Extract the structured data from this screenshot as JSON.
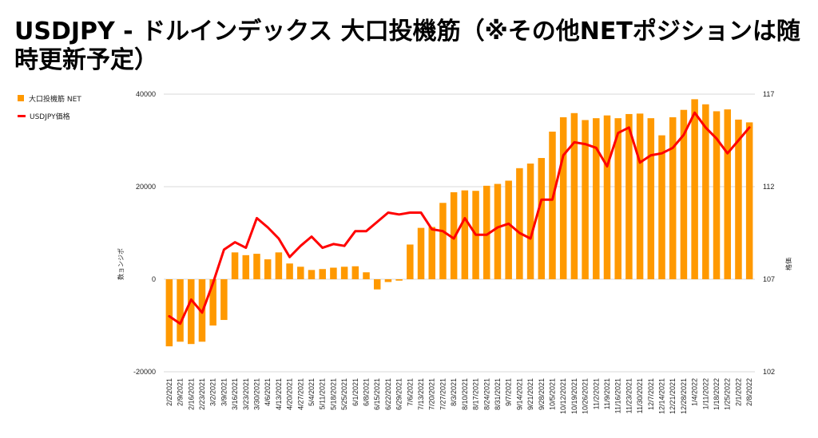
{
  "title": "USDJPY - ドルインデックス 大口投機筋（※その他NETポジションは随時更新予定）",
  "colors": {
    "bars": "#ff9900",
    "line": "#ff0000",
    "grid": "#d9d9d9"
  },
  "chart_data": {
    "type": "bar",
    "categories": [
      "2/2/2021",
      "2/9/2021",
      "2/16/2021",
      "2/23/2021",
      "3/2/2021",
      "3/9/2021",
      "3/16/2021",
      "3/23/2021",
      "3/30/2021",
      "4/6/2021",
      "4/13/2021",
      "4/20/2021",
      "4/27/2021",
      "5/4/2021",
      "5/11/2021",
      "5/18/2021",
      "5/25/2021",
      "6/1/2021",
      "6/8/2021",
      "6/15/2021",
      "6/22/2021",
      "6/29/2021",
      "7/6/2021",
      "7/13/2021",
      "7/20/2021",
      "7/27/2021",
      "8/3/2021",
      "8/10/2021",
      "8/17/2021",
      "8/24/2021",
      "8/31/2021",
      "9/7/2021",
      "9/14/2021",
      "9/21/2021",
      "9/28/2021",
      "10/5/2021",
      "10/12/2021",
      "10/19/2021",
      "10/26/2021",
      "11/2/2021",
      "11/9/2021",
      "11/16/2021",
      "11/23/2021",
      "11/30/2021",
      "12/7/2021",
      "12/14/2021",
      "12/21/2021",
      "12/28/2021",
      "1/4/2022",
      "1/11/2022",
      "1/18/2022",
      "1/25/2022",
      "2/1/2022",
      "2/8/2022"
    ],
    "series": [
      {
        "name": "大口投機筋 NET",
        "axis": "left",
        "type": "bar",
        "values": [
          -14500,
          -13500,
          -14000,
          -13500,
          -10000,
          -8800,
          5800,
          5200,
          5500,
          4300,
          5800,
          3400,
          2700,
          2000,
          2200,
          2500,
          2700,
          2800,
          1500,
          -2200,
          -600,
          -300,
          7500,
          11100,
          11300,
          16500,
          18800,
          19200,
          19100,
          20200,
          20600,
          21300,
          24000,
          25000,
          26200,
          31900,
          35000,
          35900,
          34400,
          34800,
          35400,
          34800,
          35700,
          35800,
          34800,
          31100,
          35000,
          36600,
          38900,
          37800,
          36300,
          36700,
          34500,
          33900
        ]
      },
      {
        "name": "USDJPY価格",
        "axis": "right",
        "type": "line",
        "values": [
          105.0,
          104.6,
          105.9,
          105.2,
          106.8,
          108.6,
          109.0,
          108.7,
          110.3,
          109.8,
          109.2,
          108.2,
          108.8,
          109.3,
          108.7,
          108.9,
          108.8,
          109.6,
          109.6,
          110.1,
          110.6,
          110.5,
          110.6,
          110.6,
          109.7,
          109.6,
          109.2,
          110.3,
          109.4,
          109.4,
          109.8,
          110.0,
          109.5,
          109.2,
          111.3,
          111.3,
          113.7,
          114.4,
          114.3,
          114.1,
          113.1,
          114.9,
          115.2,
          113.3,
          113.7,
          113.8,
          114.1,
          114.8,
          116.0,
          115.2,
          114.6,
          113.8,
          114.5,
          115.2
        ]
      }
    ],
    "ylabel": "数ョンジポ",
    "y2label": "格価",
    "ylim": [
      -20000,
      40000
    ],
    "y2lim": [
      102,
      117
    ],
    "yticks": [
      "40000",
      "20000",
      "0",
      "-20000"
    ],
    "y2ticks": [
      "117",
      "112",
      "107",
      "102"
    ],
    "grid": true,
    "legend_position": "left"
  }
}
